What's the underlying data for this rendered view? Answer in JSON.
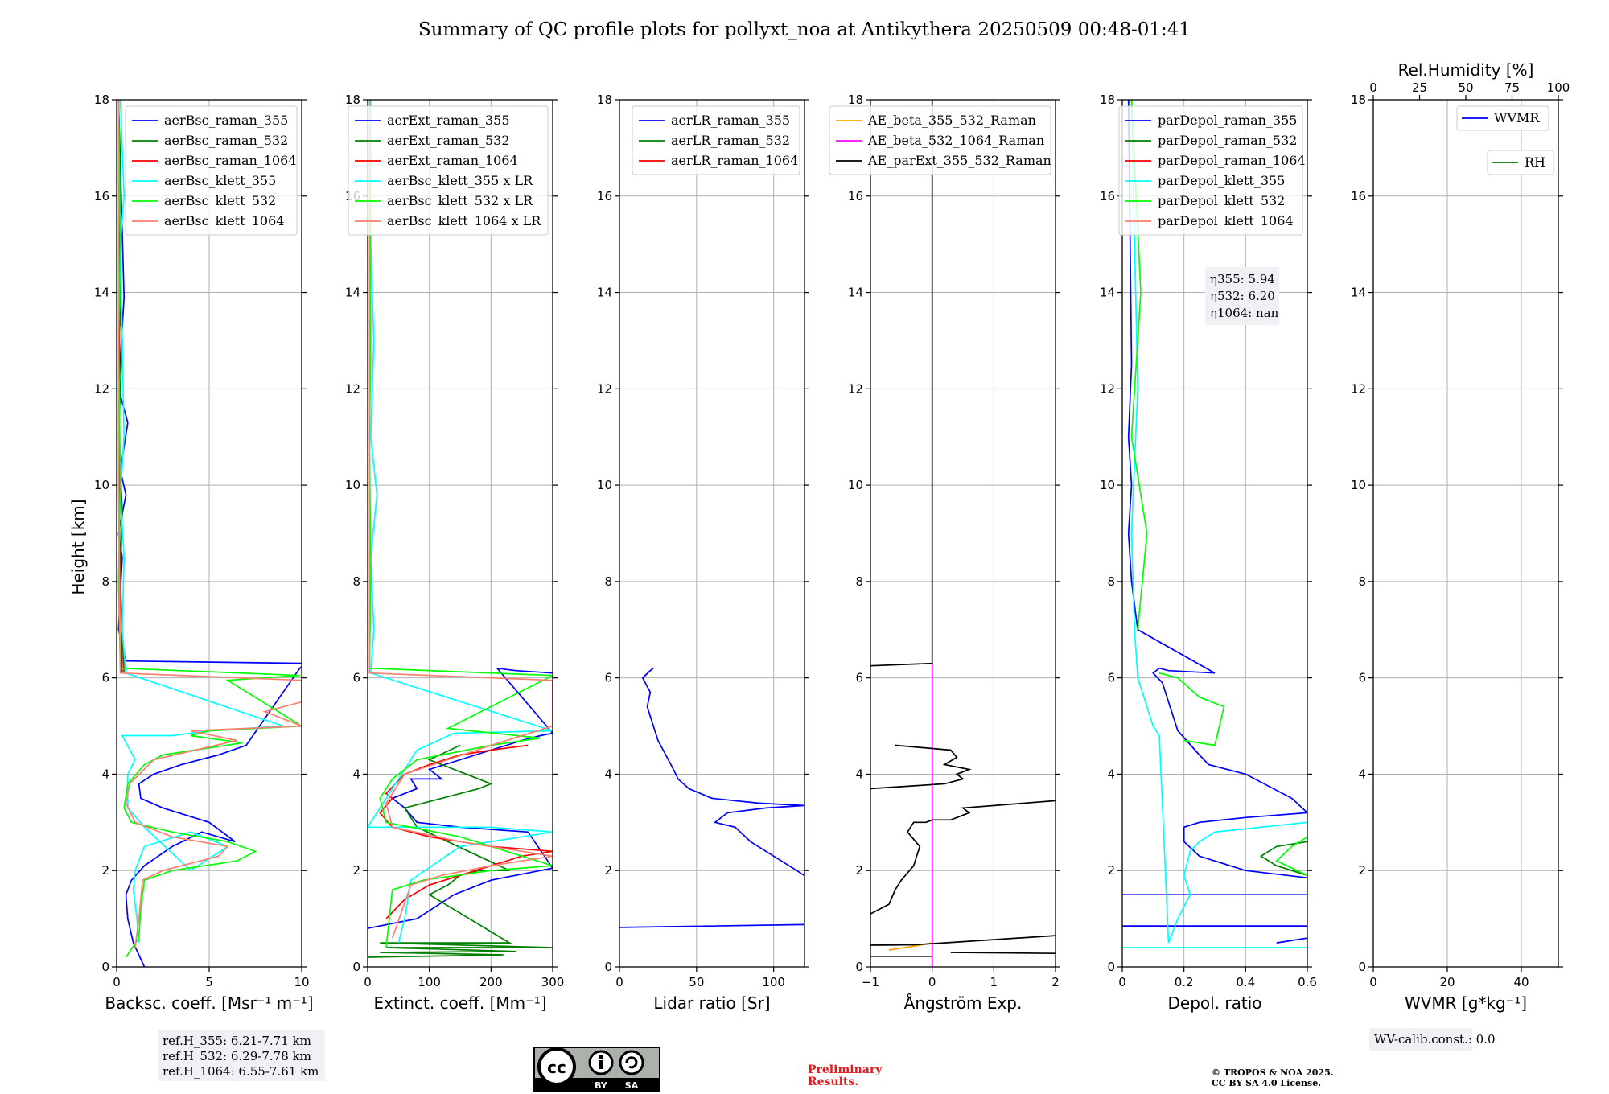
{
  "title": "Summary of QC profile plots for pollyxt_noa at Antikythera 20250509 00:48-01:41",
  "ylabel": "Height [km]",
  "refH": [
    "ref.H_355: 6.21-7.71 km",
    "ref.H_532: 6.29-7.78 km",
    "ref.H_1064: 6.55-7.61 km"
  ],
  "eta": [
    "η355: 5.94",
    "η532: 6.20",
    "η1064: nan"
  ],
  "wv_calib": "WV-calib.const.: 0.0",
  "preliminary": [
    "Preliminary",
    "Results."
  ],
  "copyright": [
    "© TROPOS & NOA 2025.",
    "CC BY SA 4.0 License."
  ],
  "license_badge": [
    "BY",
    "SA"
  ],
  "chart_data": [
    {
      "type": "line",
      "xlabel": "Backsc. coeff. [Msr⁻¹ m⁻¹]",
      "xlim": [
        0,
        10
      ],
      "ylim": [
        0,
        18
      ],
      "xticks": [
        0,
        5,
        10
      ],
      "yticks": [
        0,
        2,
        4,
        6,
        8,
        10,
        12,
        14,
        16,
        18
      ],
      "grid": true,
      "legend": "top-right",
      "series": [
        {
          "name": "aerBsc_raman_355",
          "color": "#0000ff",
          "x": [
            1.5,
            0.9,
            0.6,
            0.5,
            0.8,
            1.5,
            3.0,
            4.6,
            6.4,
            5.0,
            2.5,
            1.3,
            1.2,
            2.0,
            3.5,
            5.5,
            7.0,
            9.9,
            10.2,
            0.5,
            0.1,
            0.3,
            0.1,
            0.5,
            0.2,
            0.6,
            0.1,
            0.4,
            0.1
          ],
          "y": [
            0,
            0.5,
            1.0,
            1.5,
            1.8,
            2.1,
            2.5,
            2.8,
            2.6,
            3.0,
            3.3,
            3.5,
            3.8,
            4.0,
            4.2,
            4.4,
            4.6,
            6.2,
            6.3,
            6.35,
            7.0,
            8.5,
            9.0,
            9.8,
            10.3,
            11.3,
            12.0,
            13.9,
            18
          ]
        },
        {
          "name": "aerBsc_raman_532",
          "color": "#008000",
          "x": [
            0.4,
            0.3,
            0.2,
            0.3,
            0.1,
            0.3,
            0.1,
            0.2,
            0.1
          ],
          "y": [
            6.1,
            7,
            8,
            9.5,
            11,
            13,
            14,
            16,
            18
          ]
        },
        {
          "name": "aerBsc_raman_1064",
          "color": "#ff0000",
          "x": [
            0.3,
            0.2,
            0.1,
            0.2,
            0.1
          ],
          "y": [
            6.1,
            8,
            11,
            15,
            18
          ]
        },
        {
          "name": "aerBsc_klett_355",
          "color": "#00ffff",
          "x": [
            1.2,
            1.1,
            0.9,
            1.0,
            1.5,
            4.0,
            6.0,
            4.0,
            1.5,
            0.6,
            0.6,
            1.0,
            0.3,
            3.0,
            5.0,
            9.0,
            0.5,
            0.3,
            0.4,
            0.2,
            0.4,
            0.3,
            0.2,
            0.4,
            0.2
          ],
          "y": [
            0.5,
            1.0,
            1.6,
            2.0,
            2.5,
            2.8,
            2.5,
            2.0,
            2.9,
            3.3,
            4.0,
            4.3,
            4.8,
            4.8,
            4.9,
            5.0,
            6.1,
            7.0,
            8.5,
            9.8,
            11,
            13,
            15,
            16,
            18
          ]
        },
        {
          "name": "aerBsc_klett_532",
          "color": "#00ff00",
          "x": [
            0.5,
            1.2,
            1.3,
            1.5,
            3.0,
            6.5,
            7.5,
            6.0,
            3.0,
            0.8,
            0.4,
            0.6,
            1.5,
            2.5,
            6.8,
            4.0,
            5.0,
            10,
            6.0,
            9.9,
            0.2,
            0.1,
            0.2,
            0.1,
            0.2,
            0.1
          ],
          "y": [
            0.2,
            0.6,
            1.2,
            1.8,
            2.0,
            2.2,
            2.4,
            2.6,
            2.8,
            3.0,
            3.3,
            3.8,
            4.2,
            4.4,
            4.65,
            4.8,
            4.9,
            5.0,
            5.95,
            6.05,
            6.2,
            8,
            10,
            13,
            15,
            18
          ]
        },
        {
          "name": "aerBsc_klett_1064",
          "color": "#fa8072",
          "x": [
            1.0,
            1.2,
            1.4,
            2.5,
            5.5,
            6.0,
            3.0,
            1.0,
            0.5,
            0.7,
            2.0,
            6.5,
            4.0,
            10,
            8.0,
            10,
            10,
            0.2,
            0.1,
            0.1
          ],
          "y": [
            0.4,
            1.0,
            1.8,
            2.0,
            2.3,
            2.5,
            2.7,
            3.0,
            3.4,
            3.8,
            4.3,
            4.7,
            4.9,
            5.0,
            5.3,
            5.5,
            5.95,
            6.1,
            10,
            18
          ]
        }
      ]
    },
    {
      "type": "line",
      "xlabel": "Extinct. coeff. [Mm⁻¹]",
      "xlim": [
        0,
        300
      ],
      "ylim": [
        0,
        18
      ],
      "xticks": [
        0,
        100,
        200,
        300
      ],
      "yticks": [
        0,
        2,
        4,
        6,
        8,
        10,
        12,
        14,
        16,
        18
      ],
      "grid": true,
      "legend": "top-right",
      "series": [
        {
          "name": "aerExt_raman_355",
          "color": "#0000ff",
          "x": [
            0,
            80,
            140,
            200,
            260,
            300,
            260,
            150,
            80,
            60,
            40,
            80,
            70,
            120,
            100,
            150,
            200,
            250,
            280,
            300,
            210,
            240,
            300
          ],
          "y": [
            0.8,
            1.0,
            1.5,
            1.8,
            1.95,
            2.05,
            2.8,
            2.9,
            3.0,
            3.3,
            3.5,
            3.7,
            3.9,
            3.9,
            4.1,
            4.3,
            4.5,
            4.7,
            4.8,
            4.85,
            6.2,
            6.15,
            6.1
          ]
        },
        {
          "name": "aerExt_raman_532",
          "color": "#008000",
          "x": [
            0,
            220,
            20,
            240,
            30,
            300,
            20,
            230,
            100,
            130,
            150,
            180,
            200,
            230,
            80,
            60,
            120,
            180,
            200,
            160,
            100,
            150
          ],
          "y": [
            0.2,
            0.25,
            0.3,
            0.32,
            0.4,
            0.4,
            0.5,
            0.5,
            1.5,
            1.7,
            1.9,
            2.0,
            2.0,
            2.0,
            2.9,
            3.3,
            3.5,
            3.7,
            3.8,
            4.0,
            4.3,
            4.6
          ]
        },
        {
          "name": "aerExt_raman_1064",
          "color": "#ff0000",
          "x": [
            30,
            60,
            100,
            150,
            200,
            250,
            300,
            200,
            100,
            40,
            20,
            40,
            30,
            60,
            100,
            150,
            200,
            260
          ],
          "y": [
            1.0,
            1.4,
            1.7,
            1.9,
            2.1,
            2.3,
            2.4,
            2.5,
            2.7,
            2.9,
            3.2,
            3.5,
            3.6,
            4.0,
            4.2,
            4.4,
            4.5,
            4.6
          ]
        },
        {
          "name": "aerBsc_klett_355 x LR",
          "color": "#00ffff",
          "x": [
            50,
            60,
            70,
            150,
            300,
            200,
            80,
            30,
            0,
            80,
            140,
            300,
            5,
            10,
            5,
            15,
            5,
            10,
            5,
            5
          ],
          "y": [
            0.5,
            1.0,
            1.8,
            2.5,
            2.8,
            2.9,
            2.9,
            2.9,
            2.9,
            4.5,
            4.85,
            4.9,
            6.1,
            7.0,
            8.5,
            9.8,
            11,
            13,
            15,
            18
          ]
        },
        {
          "name": "aerBsc_klett_532 x LR",
          "color": "#00ff00",
          "x": [
            30,
            40,
            90,
            200,
            300,
            150,
            30,
            20,
            40,
            80,
            200,
            280,
            130,
            300,
            3,
            5,
            3,
            5,
            3
          ],
          "y": [
            0.4,
            1.6,
            1.8,
            2.0,
            2.1,
            2.7,
            3.0,
            3.5,
            3.9,
            4.3,
            4.6,
            4.75,
            4.95,
            6.05,
            6.2,
            8.0,
            11,
            13,
            18
          ]
        },
        {
          "name": "aerBsc_klett_1064 x LR",
          "color": "#fa8072",
          "x": [
            40,
            70,
            120,
            200,
            300,
            150,
            40,
            30,
            60,
            200,
            300,
            300,
            3,
            3
          ],
          "y": [
            0.6,
            1.7,
            1.9,
            2.1,
            2.3,
            2.6,
            2.9,
            3.4,
            4.0,
            4.6,
            5.0,
            5.95,
            6.1,
            18
          ]
        }
      ]
    },
    {
      "type": "line",
      "xlabel": "Lidar ratio [Sr]",
      "xlim": [
        0,
        120
      ],
      "ylim": [
        0,
        18
      ],
      "xticks": [
        0,
        50,
        100
      ],
      "yticks": [
        0,
        2,
        4,
        6,
        8,
        10,
        12,
        14,
        16,
        18
      ],
      "grid": true,
      "legend": "top-right",
      "series": [
        {
          "name": "aerLR_raman_355",
          "color": "#0000ff",
          "x": [
            0,
            122,
            null,
            122,
            115,
            100,
            85,
            75,
            62,
            70,
            95,
            120,
            90,
            60,
            45,
            38,
            35,
            30,
            25,
            22,
            18,
            20,
            15,
            20,
            22
          ],
          "y": [
            0.82,
            0.88,
            null,
            1.85,
            2.0,
            2.3,
            2.6,
            2.9,
            3.0,
            3.2,
            3.3,
            3.35,
            3.4,
            3.5,
            3.7,
            3.9,
            4.1,
            4.4,
            4.7,
            5.0,
            5.4,
            5.7,
            6.0,
            6.15,
            6.2
          ]
        },
        {
          "name": "aerLR_raman_532",
          "color": "#008000",
          "x": [],
          "y": []
        },
        {
          "name": "aerLR_raman_1064",
          "color": "#ff0000",
          "x": [],
          "y": []
        }
      ]
    },
    {
      "type": "line",
      "xlabel": "Ångström Exp.",
      "xlim": [
        -1,
        2
      ],
      "ylim": [
        0,
        18
      ],
      "xticks": [
        -1,
        0,
        1,
        2
      ],
      "yticks": [
        0,
        2,
        4,
        6,
        8,
        10,
        12,
        14,
        16,
        18
      ],
      "grid": true,
      "legend": "top-right",
      "series": [
        {
          "name": "AE_beta_355_532_Raman",
          "color": "#ffa500",
          "x": [
            -0.7,
            -0.2,
            0.0
          ],
          "y": [
            0.35,
            0.45,
            0.5
          ]
        },
        {
          "name": "AE_beta_532_1064_Raman",
          "color": "#ff00ff",
          "x": [
            0,
            0
          ],
          "y": [
            0,
            6.3
          ]
        },
        {
          "name": "AE_parExt_355_532_Raman",
          "color": "#000000",
          "x": [
            -1,
            0,
            null,
            0.3,
            2.0,
            null,
            -1,
            -0.3,
            0.2,
            2.0,
            null,
            -1,
            -0.7,
            -0.6,
            -0.5,
            -0.3,
            -0.2,
            -0.4,
            -0.3,
            -0.1,
            0.0,
            0.3,
            0.6,
            0.5,
            2.0,
            null,
            -1,
            0.2,
            0.5,
            0.4,
            0.6,
            0.2,
            0.4,
            0.3,
            -0.6,
            null,
            -1,
            0,
            0,
            0,
            null,
            0
          ],
          "y": [
            0.22,
            0.22,
            null,
            0.3,
            0.28,
            null,
            0.45,
            0.46,
            0.5,
            0.65,
            null,
            1.1,
            1.3,
            1.6,
            1.8,
            2.1,
            2.5,
            2.8,
            3.0,
            3.0,
            3.05,
            3.05,
            3.2,
            3.3,
            3.45,
            null,
            3.7,
            3.8,
            3.9,
            4.0,
            4.1,
            4.2,
            4.35,
            4.5,
            4.6,
            null,
            6.25,
            6.3,
            10,
            18,
            null,
            null
          ]
        }
      ]
    },
    {
      "type": "line",
      "xlabel": "Depol. ratio",
      "xlim": [
        0,
        0.6
      ],
      "ylim": [
        0,
        18
      ],
      "xticks": [
        0.0,
        0.2,
        0.4,
        0.6
      ],
      "yticks": [
        0,
        2,
        4,
        6,
        8,
        10,
        12,
        14,
        16,
        18
      ],
      "grid": true,
      "legend": "top-right",
      "series": [
        {
          "name": "parDepol_raman_355",
          "color": "#0000ff",
          "x": [
            0.6,
            0.5,
            null,
            0,
            0.6,
            null,
            0,
            0.6,
            null,
            0.6,
            0.4,
            0.25,
            0.2,
            0.2,
            0.25,
            0.4,
            0.6,
            0.55,
            0.4,
            0.28,
            0.25,
            0.18,
            0.15,
            0.13,
            0.1,
            0.12,
            0.15,
            0.3,
            0.05,
            0.03,
            0.02,
            0.03,
            0.02,
            0.03,
            0.02
          ],
          "y": [
            0.6,
            0.5,
            null,
            0.85,
            0.85,
            null,
            1.5,
            1.5,
            null,
            1.85,
            2.0,
            2.3,
            2.6,
            2.9,
            3.0,
            3.1,
            3.2,
            3.5,
            4.0,
            4.2,
            4.4,
            4.9,
            5.5,
            5.9,
            6.1,
            6.2,
            6.15,
            6.1,
            7.0,
            8.0,
            9.0,
            10,
            11,
            12.5,
            18
          ]
        },
        {
          "name": "parDepol_raman_532",
          "color": "#008000",
          "x": [
            0.6,
            0.5,
            0.45,
            0.5,
            0.6
          ],
          "y": [
            1.9,
            2.1,
            2.3,
            2.5,
            2.6
          ]
        },
        {
          "name": "parDepol_raman_1064",
          "color": "#ff0000",
          "x": [],
          "y": []
        },
        {
          "name": "parDepol_klett_355",
          "color": "#00ffff",
          "x": [
            0,
            0.6,
            null,
            0.6,
            0.3,
            0.25,
            0.22,
            0.2,
            0.22,
            0.18,
            0.15,
            0.12,
            0.1,
            0.08,
            0.05,
            0.04,
            0.03,
            0.05,
            0.03
          ],
          "y": [
            0.4,
            0.4,
            null,
            3.0,
            2.8,
            2.6,
            2.4,
            1.9,
            1.5,
            1.0,
            0.5,
            4.8,
            5.0,
            5.4,
            6.0,
            7.0,
            9.0,
            12,
            18
          ]
        },
        {
          "name": "parDepol_klett_532",
          "color": "#00ff00",
          "x": [
            0.6,
            0.55,
            0.5,
            0.6,
            null,
            0.2,
            0.3,
            0.33,
            0.25,
            0.18,
            0.12,
            null,
            0.05,
            0.08,
            0.03,
            0.06,
            0.03
          ],
          "y": [
            2.7,
            2.5,
            2.2,
            1.9,
            null,
            4.7,
            4.6,
            5.4,
            5.6,
            6.0,
            6.1,
            null,
            7.0,
            9.0,
            11,
            14,
            18
          ]
        },
        {
          "name": "parDepol_klett_1064",
          "color": "#fa8072",
          "x": [],
          "y": []
        }
      ]
    },
    {
      "type": "line",
      "xlabel": "WVMR [g*kg⁻¹]",
      "top_xlabel": "Rel.Humidity [%]",
      "xlim": [
        0,
        50
      ],
      "top_xlim": [
        0,
        100
      ],
      "ylim": [
        0,
        18
      ],
      "xticks": [
        0,
        20,
        40
      ],
      "top_xticks": [
        0,
        25,
        50,
        75,
        100
      ],
      "yticks": [
        0,
        2,
        4,
        6,
        8,
        10,
        12,
        14,
        16,
        18
      ],
      "grid": true,
      "legend": "top-right",
      "series": [
        {
          "name": "WVMR",
          "color": "#0000ff",
          "x": [],
          "y": []
        },
        {
          "name": "RH",
          "color": "#008000",
          "x": [],
          "y": []
        }
      ]
    }
  ]
}
